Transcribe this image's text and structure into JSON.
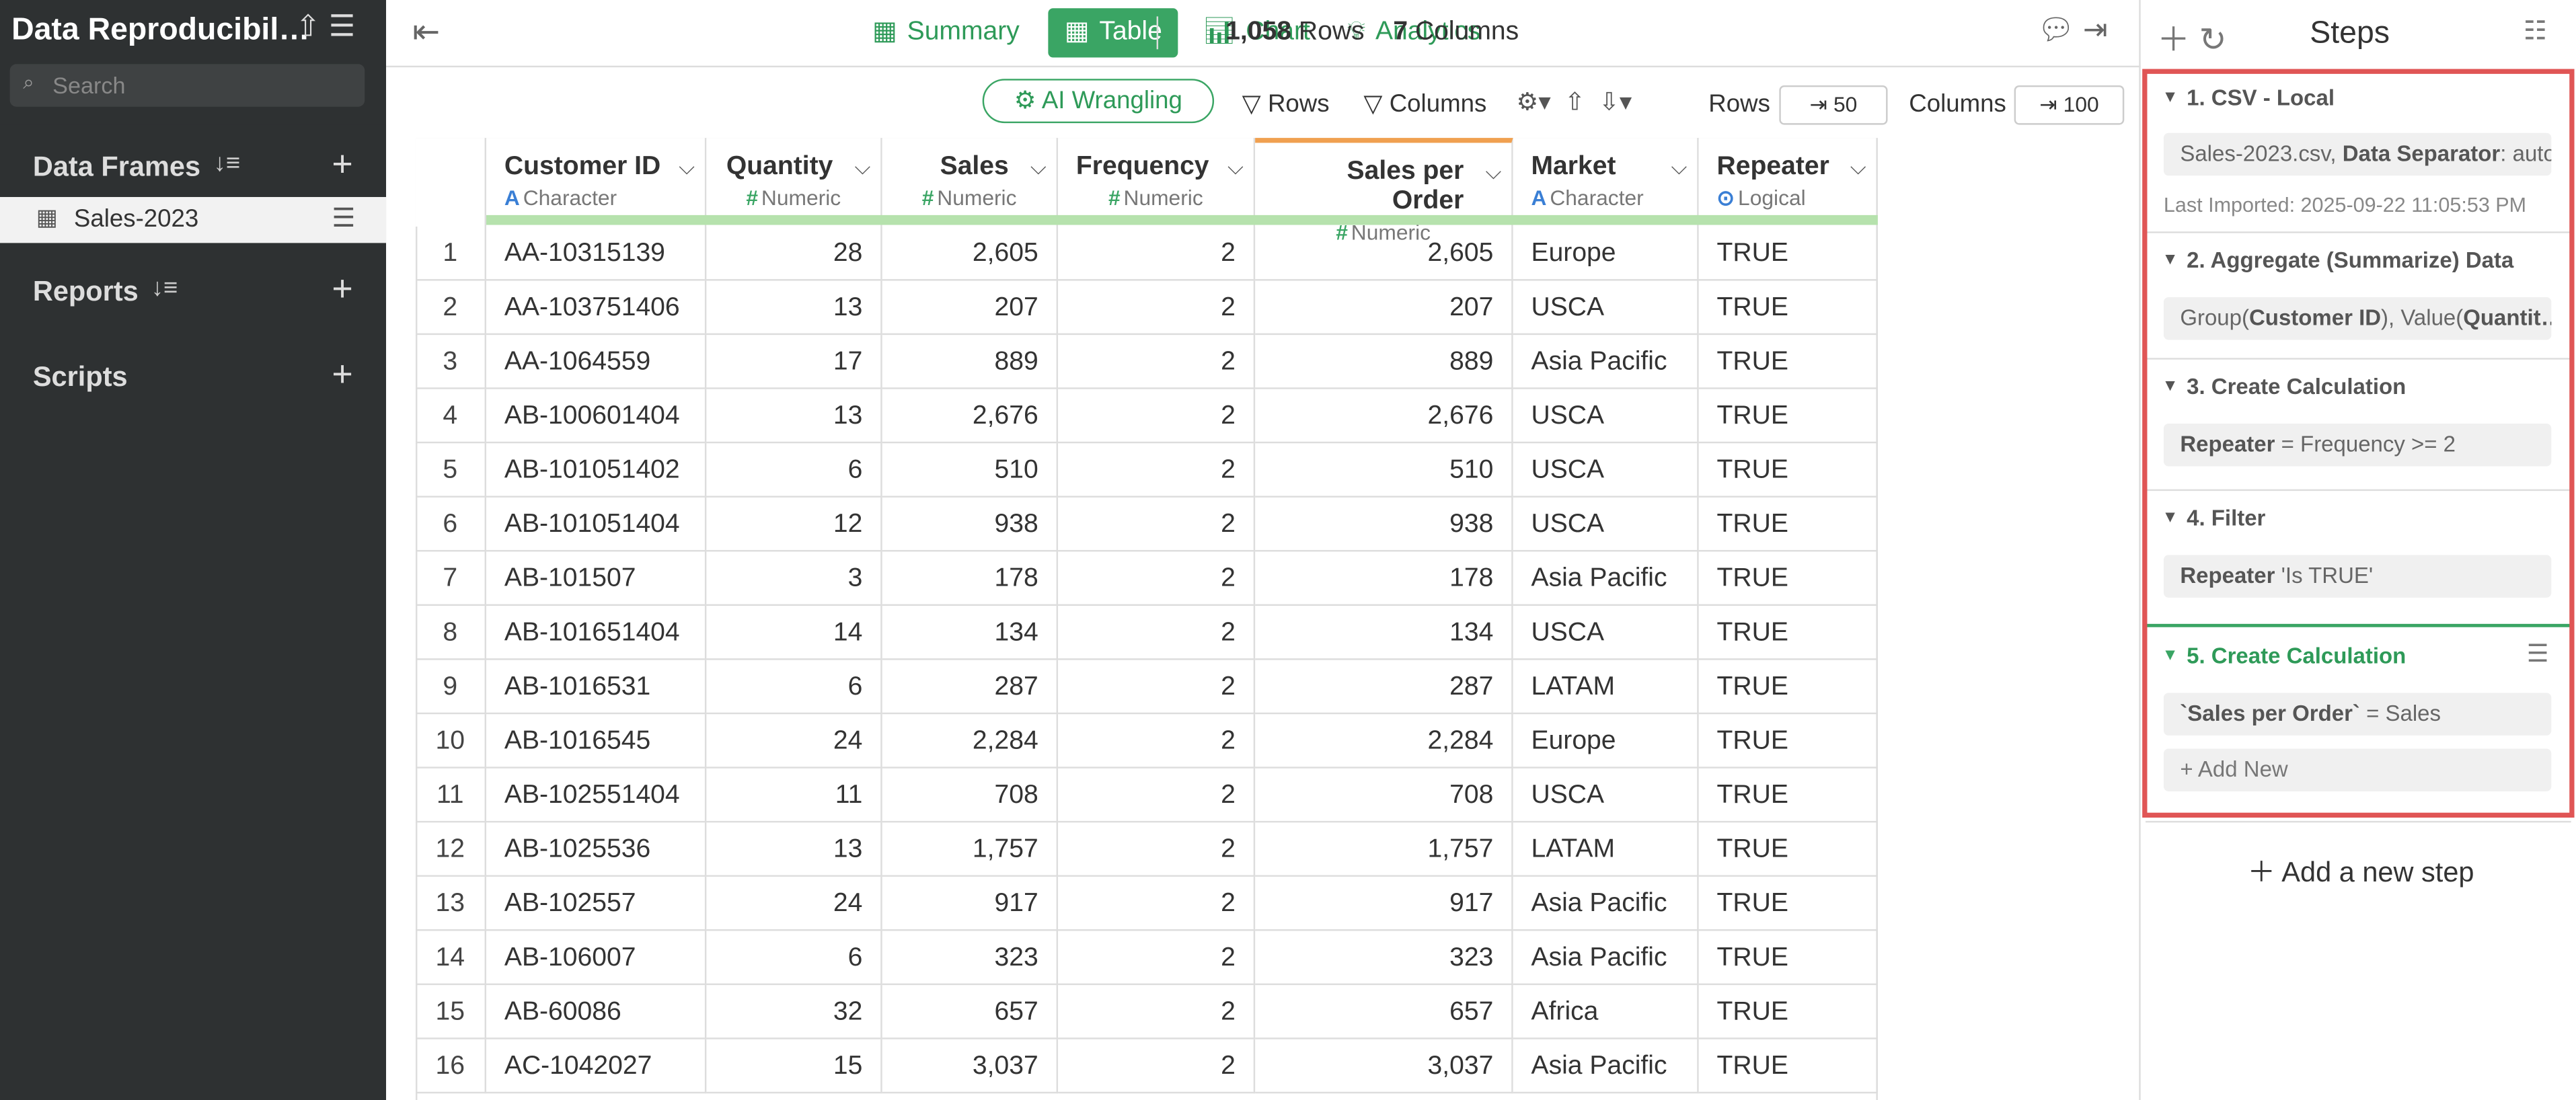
{
  "sidebar": {
    "title": "Data Reproducibil…",
    "search_placeholder": "Search",
    "sections": [
      {
        "label": "Data Frames",
        "items": [
          "Sales-2023"
        ]
      },
      {
        "label": "Reports",
        "items": []
      },
      {
        "label": "Scripts",
        "items": []
      }
    ]
  },
  "toolbar": {
    "tabs": [
      "Summary",
      "Table",
      "Chart",
      "Analytics"
    ],
    "active_tab": 1,
    "row_count": "1,058",
    "rows_label": "Rows",
    "col_count": "7",
    "cols_label": "Columns"
  },
  "subtoolbar": {
    "ai": "AI Wrangling",
    "rows_filter": "Rows",
    "columns_filter": "Columns",
    "rows_label": "Rows",
    "rows_value": "50",
    "columns_label": "Columns",
    "columns_value": "100"
  },
  "table": {
    "columns": [
      {
        "name": "Customer ID",
        "type": "Character"
      },
      {
        "name": "Quantity",
        "type": "Numeric"
      },
      {
        "name": "Sales",
        "type": "Numeric"
      },
      {
        "name": "Frequency",
        "type": "Numeric"
      },
      {
        "name": "Sales per Order",
        "type": "Numeric"
      },
      {
        "name": "Market",
        "type": "Character"
      },
      {
        "name": "Repeater",
        "type": "Logical"
      }
    ],
    "rows": [
      [
        "1",
        "AA-10315139",
        "28",
        "2,605",
        "2",
        "2,605",
        "Europe",
        "TRUE"
      ],
      [
        "2",
        "AA-103751406",
        "13",
        "207",
        "2",
        "207",
        "USCA",
        "TRUE"
      ],
      [
        "3",
        "AA-1064559",
        "17",
        "889",
        "2",
        "889",
        "Asia Pacific",
        "TRUE"
      ],
      [
        "4",
        "AB-100601404",
        "13",
        "2,676",
        "2",
        "2,676",
        "USCA",
        "TRUE"
      ],
      [
        "5",
        "AB-101051402",
        "6",
        "510",
        "2",
        "510",
        "USCA",
        "TRUE"
      ],
      [
        "6",
        "AB-101051404",
        "12",
        "938",
        "2",
        "938",
        "USCA",
        "TRUE"
      ],
      [
        "7",
        "AB-101507",
        "3",
        "178",
        "2",
        "178",
        "Asia Pacific",
        "TRUE"
      ],
      [
        "8",
        "AB-101651404",
        "14",
        "134",
        "2",
        "134",
        "USCA",
        "TRUE"
      ],
      [
        "9",
        "AB-1016531",
        "6",
        "287",
        "2",
        "287",
        "LATAM",
        "TRUE"
      ],
      [
        "10",
        "AB-1016545",
        "24",
        "2,284",
        "2",
        "2,284",
        "Europe",
        "TRUE"
      ],
      [
        "11",
        "AB-102551404",
        "11",
        "708",
        "2",
        "708",
        "USCA",
        "TRUE"
      ],
      [
        "12",
        "AB-1025536",
        "13",
        "1,757",
        "2",
        "1,757",
        "LATAM",
        "TRUE"
      ],
      [
        "13",
        "AB-102557",
        "24",
        "917",
        "2",
        "917",
        "Asia Pacific",
        "TRUE"
      ],
      [
        "14",
        "AB-106007",
        "6",
        "323",
        "2",
        "323",
        "Asia Pacific",
        "TRUE"
      ],
      [
        "15",
        "AB-60086",
        "32",
        "657",
        "2",
        "657",
        "Africa",
        "TRUE"
      ],
      [
        "16",
        "AC-1042027",
        "15",
        "3,037",
        "2",
        "3,037",
        "Asia Pacific",
        "TRUE"
      ]
    ]
  },
  "steps_panel": {
    "title": "Steps",
    "steps": [
      {
        "title": "1. CSV - Local",
        "content": [
          {
            "t": "Sales-2023.csv, "
          },
          {
            "b": "Data Separator"
          },
          {
            "t": ": auto"
          }
        ],
        "note": "Last Imported: 2025-09-22 11:05:53 PM"
      },
      {
        "title": "2. Aggregate (Summarize) Data",
        "content": [
          {
            "t": "Group("
          },
          {
            "b": "Customer ID"
          },
          {
            "t": "), Value("
          },
          {
            "b": "Quantit…"
          }
        ]
      },
      {
        "title": "3. Create Calculation",
        "content": [
          {
            "b": "Repeater"
          },
          {
            "t": " = Frequency >= 2"
          }
        ]
      },
      {
        "title": "4. Filter",
        "content": [
          {
            "b": "Repeater"
          },
          {
            "t": " 'Is TRUE'"
          }
        ]
      },
      {
        "title": "5. Create Calculation",
        "content": [
          {
            "b": "`Sales per Order`"
          },
          {
            "t": " = Sales"
          }
        ],
        "add": "Add New"
      }
    ],
    "add_step": "Add a new step"
  }
}
